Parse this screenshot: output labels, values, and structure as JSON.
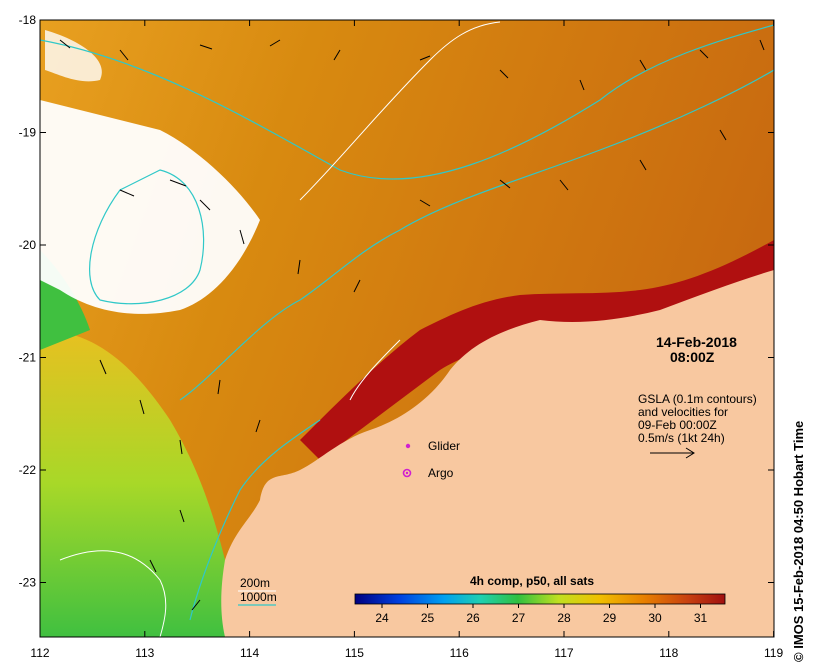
{
  "map": {
    "lon_ticks": [
      "112",
      "113",
      "114",
      "115",
      "116",
      "117",
      "118",
      "119"
    ],
    "lat_ticks": [
      "-18",
      "-19",
      "-20",
      "-21",
      "-22",
      "-23"
    ],
    "date": "14-Feb-2018",
    "time": "08:00Z",
    "gsla_lines": [
      "GSLA (0.1m contours)",
      "and velocities for",
      "09-Feb 00:00Z",
      "0.5m/s (1kt 24h)"
    ],
    "legend_glider": "Glider",
    "legend_argo": "Argo",
    "depth_200": "200m",
    "depth_1000": "1000m",
    "colorbar_title": "4h comp, p50, all sats",
    "colorbar_ticks": [
      "24",
      "25",
      "26",
      "27",
      "28",
      "29",
      "30",
      "31"
    ],
    "credit": "IMOS 15-Feb-2018 04:50 Hobart Time",
    "copyright_symbol": "©",
    "colors": {
      "land": "#f8c8a0",
      "cloud": "#ffffff",
      "contour_1000": "#30c8c8",
      "contour_200": "#ffffff",
      "glider": "#d020d0",
      "argo": "#d020d0"
    }
  }
}
